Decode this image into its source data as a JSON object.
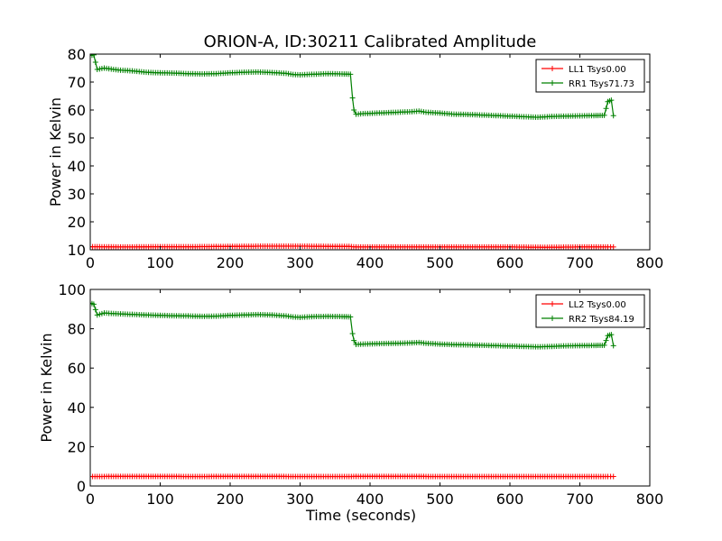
{
  "figure": {
    "title": "ORION-A, ID:30211 Calibrated Amplitude",
    "background": "#ffffff"
  },
  "chart_data": [
    {
      "type": "line",
      "title": "ORION-A, ID:30211 Calibrated Amplitude",
      "xlabel": "",
      "ylabel": "Power in Kelvin",
      "xlim": [
        0,
        800
      ],
      "ylim": [
        10,
        80
      ],
      "xticks": [
        0,
        100,
        200,
        300,
        400,
        500,
        600,
        700,
        800
      ],
      "yticks": [
        10,
        20,
        30,
        40,
        50,
        60,
        70,
        80
      ],
      "grid": false,
      "legend_position": "top-right",
      "series": [
        {
          "name": "LL1 Tsys0.00",
          "color": "#ff0000",
          "marker": "plus",
          "x": [
            0,
            50,
            100,
            150,
            200,
            250,
            300,
            350,
            370,
            380,
            450,
            500,
            550,
            600,
            650,
            700,
            740,
            748
          ],
          "y": [
            11.1,
            11.0,
            11.1,
            11.1,
            11.2,
            11.3,
            11.3,
            11.2,
            11.2,
            11.0,
            11.0,
            11.0,
            11.0,
            11.0,
            10.9,
            11.0,
            11.0,
            11.0
          ]
        },
        {
          "name": "RR1 Tsys71.73",
          "color": "#008000",
          "marker": "plus",
          "x": [
            0,
            5,
            10,
            20,
            40,
            60,
            80,
            100,
            120,
            140,
            160,
            180,
            200,
            220,
            240,
            260,
            280,
            290,
            300,
            320,
            340,
            360,
            372,
            375,
            377,
            380,
            390,
            400,
            420,
            440,
            460,
            470,
            480,
            500,
            520,
            540,
            560,
            580,
            600,
            620,
            640,
            660,
            680,
            700,
            720,
            735,
            740,
            745,
            748
          ],
          "y": [
            79.5,
            79.7,
            74.5,
            75.0,
            74.3,
            74.0,
            73.5,
            73.3,
            73.2,
            73.0,
            72.9,
            73.0,
            73.3,
            73.5,
            73.6,
            73.4,
            73.1,
            72.7,
            72.6,
            72.8,
            73.0,
            72.9,
            72.8,
            64.3,
            60.0,
            58.5,
            58.7,
            58.8,
            59.0,
            59.2,
            59.4,
            59.6,
            59.2,
            58.9,
            58.5,
            58.4,
            58.2,
            58.0,
            57.8,
            57.6,
            57.4,
            57.7,
            57.8,
            57.9,
            58.0,
            58.1,
            63.0,
            63.5,
            58.0
          ]
        }
      ]
    },
    {
      "type": "line",
      "title": "",
      "xlabel": "Time (seconds)",
      "ylabel": "Power in Kelvin",
      "xlim": [
        0,
        800
      ],
      "ylim": [
        0,
        100
      ],
      "xticks": [
        0,
        100,
        200,
        300,
        400,
        500,
        600,
        700,
        800
      ],
      "yticks": [
        0,
        20,
        40,
        60,
        80,
        100
      ],
      "grid": false,
      "legend_position": "top-right",
      "series": [
        {
          "name": "LL2 Tsys0.00",
          "color": "#ff0000",
          "marker": "plus",
          "x": [
            0,
            50,
            100,
            150,
            200,
            250,
            300,
            350,
            370,
            380,
            450,
            500,
            550,
            600,
            650,
            700,
            740,
            748
          ],
          "y": [
            4.8,
            4.9,
            4.9,
            4.8,
            4.9,
            4.9,
            4.8,
            4.8,
            4.8,
            4.9,
            4.9,
            4.8,
            4.8,
            4.8,
            4.8,
            4.8,
            4.8,
            4.8
          ]
        },
        {
          "name": "RR2 Tsys84.19",
          "color": "#008000",
          "marker": "plus",
          "x": [
            0,
            5,
            10,
            20,
            40,
            60,
            80,
            100,
            120,
            140,
            160,
            180,
            200,
            220,
            240,
            260,
            280,
            290,
            300,
            320,
            340,
            360,
            372,
            375,
            377,
            380,
            390,
            400,
            420,
            440,
            460,
            470,
            480,
            500,
            520,
            540,
            560,
            580,
            600,
            620,
            640,
            660,
            680,
            700,
            720,
            735,
            740,
            745,
            748
          ],
          "y": [
            93.0,
            92.5,
            87.0,
            88.0,
            87.6,
            87.3,
            87.0,
            86.8,
            86.6,
            86.5,
            86.3,
            86.4,
            86.8,
            87.0,
            87.2,
            87.0,
            86.5,
            86.0,
            85.8,
            86.2,
            86.3,
            86.2,
            86.0,
            77.5,
            74.0,
            72.0,
            72.2,
            72.3,
            72.5,
            72.6,
            72.8,
            73.0,
            72.6,
            72.2,
            71.9,
            71.8,
            71.6,
            71.4,
            71.2,
            71.0,
            70.8,
            71.0,
            71.3,
            71.4,
            71.5,
            71.6,
            76.5,
            77.0,
            71.4
          ]
        }
      ]
    }
  ]
}
